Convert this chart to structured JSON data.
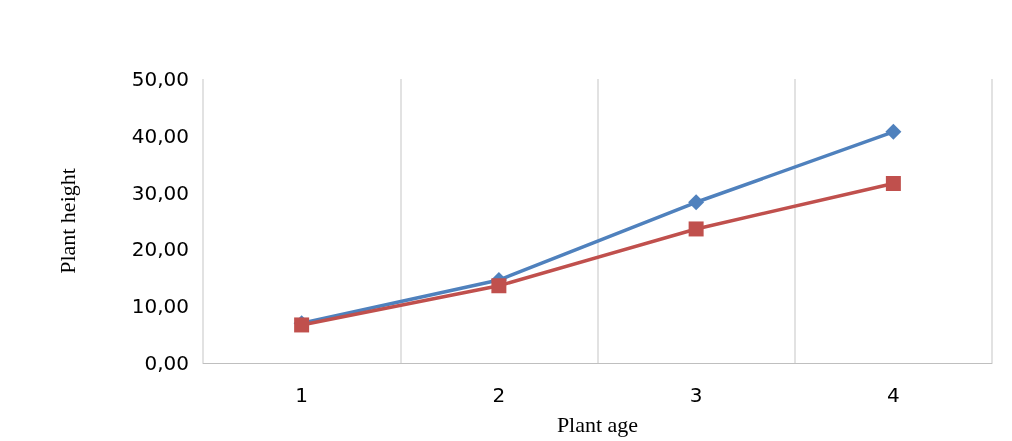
{
  "chart_data": {
    "type": "line",
    "xlabel": "Plant age",
    "ylabel": "Plant height",
    "categories": [
      "1",
      "2",
      "3",
      "4"
    ],
    "series": [
      {
        "color": "#4f81bd",
        "marker": "diamond",
        "values": [
          7.0,
          14.6,
          28.3,
          40.7
        ]
      },
      {
        "color": "#c0504d",
        "marker": "square",
        "values": [
          6.7,
          13.6,
          23.6,
          31.6
        ]
      }
    ],
    "ylim": [
      0,
      50
    ],
    "yticks": [
      {
        "value": 0,
        "label": "0,00"
      },
      {
        "value": 10,
        "label": "10,00"
      },
      {
        "value": 20,
        "label": "20,00"
      },
      {
        "value": 30,
        "label": "30,00"
      },
      {
        "value": 40,
        "label": "40,00"
      },
      {
        "value": 50,
        "label": "50,00"
      }
    ],
    "grid": "x",
    "line_style": "solid"
  }
}
